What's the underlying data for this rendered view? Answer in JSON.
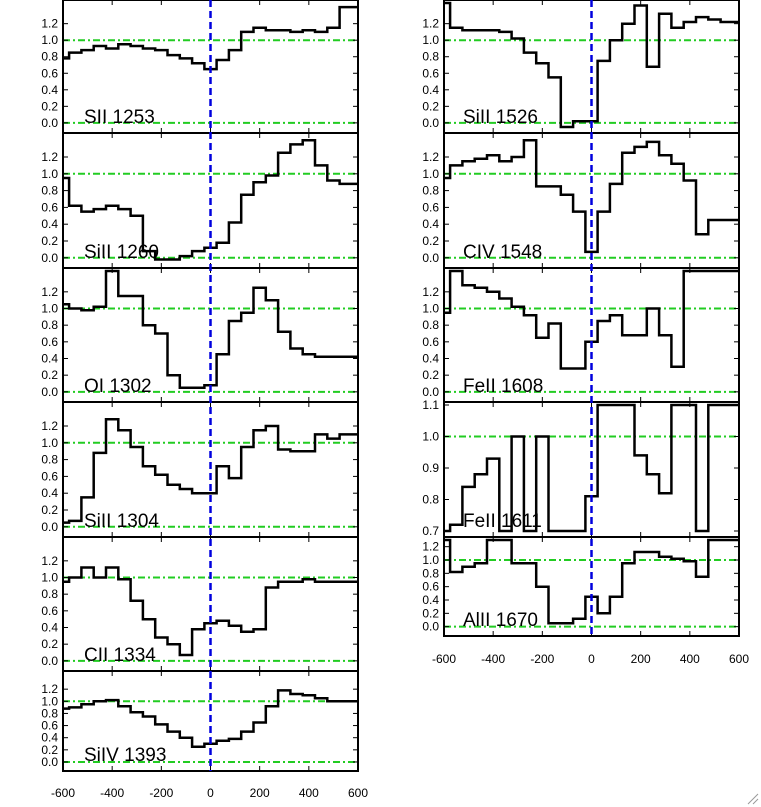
{
  "colors": {
    "spectrum": "#000000",
    "continuum": "#22cc22",
    "velocity_zero": "#0000dd",
    "frame": "#000000"
  },
  "chart_data": {
    "type": "line",
    "style": "histogram",
    "reference_lines": {
      "horizontal": [
        0.0,
        1.0
      ],
      "vertical": [
        0
      ]
    },
    "columns": [
      {
        "xlim": [
          -600,
          600
        ],
        "x_ticks": [
          -600,
          -400,
          -200,
          0,
          200,
          400,
          600
        ],
        "x_tick_labels": [
          "-600",
          "-400",
          "-200",
          "0",
          "200",
          "400",
          "600"
        ],
        "panels": [
          {
            "label": "SII 1253",
            "ylim": [
              -0.05,
              1.45
            ],
            "y_ticks": [
              "0.0",
              "0.2",
              "0.4",
              "0.6",
              "0.8",
              "1.0",
              "1.2"
            ],
            "x": [
              -600,
              -550,
              -500,
              -450,
              -400,
              -350,
              -300,
              -250,
              -200,
              -150,
              -100,
              -50,
              0,
              50,
              100,
              150,
              200,
              250,
              300,
              350,
              400,
              450,
              500,
              550,
              600
            ],
            "y": [
              0.78,
              0.85,
              0.88,
              0.93,
              0.9,
              0.95,
              0.93,
              0.9,
              0.88,
              0.82,
              0.78,
              0.72,
              0.65,
              0.76,
              0.88,
              1.1,
              1.15,
              1.12,
              1.12,
              1.1,
              1.12,
              1.1,
              1.15,
              1.4,
              1.4
            ]
          },
          {
            "label": "SiII 1260",
            "ylim": [
              -0.05,
              1.45
            ],
            "y_ticks": [
              "0.0",
              "0.2",
              "0.4",
              "0.6",
              "0.8",
              "1.0",
              "1.2"
            ],
            "x": [
              -600,
              -550,
              -500,
              -450,
              -400,
              -350,
              -300,
              -250,
              -200,
              -150,
              -100,
              -50,
              0,
              50,
              100,
              150,
              200,
              250,
              300,
              350,
              400,
              450,
              500,
              550,
              600
            ],
            "y": [
              0.95,
              0.62,
              0.55,
              0.58,
              0.62,
              0.58,
              0.5,
              0.08,
              -0.02,
              -0.02,
              0.02,
              0.08,
              0.12,
              0.18,
              0.42,
              0.75,
              0.9,
              0.98,
              1.25,
              1.35,
              1.4,
              1.1,
              0.92,
              0.88,
              0.88
            ]
          },
          {
            "label": "OI 1302",
            "ylim": [
              -0.05,
              1.45
            ],
            "y_ticks": [
              "0.0",
              "0.2",
              "0.4",
              "0.6",
              "0.8",
              "1.0",
              "1.2"
            ],
            "x": [
              -600,
              -550,
              -500,
              -450,
              -400,
              -350,
              -300,
              -250,
              -200,
              -150,
              -100,
              -50,
              0,
              50,
              100,
              150,
              200,
              250,
              300,
              350,
              400,
              450,
              500,
              550,
              600
            ],
            "y": [
              1.05,
              1.0,
              0.98,
              1.02,
              1.45,
              1.15,
              1.15,
              0.8,
              0.7,
              0.2,
              0.05,
              0.05,
              0.08,
              0.45,
              0.85,
              0.95,
              1.25,
              1.1,
              0.72,
              0.52,
              0.45,
              0.42,
              0.42,
              0.42,
              0.42
            ]
          },
          {
            "label": "SiII 1304",
            "ylim": [
              -0.05,
              1.45
            ],
            "y_ticks": [
              "0.0",
              "0.2",
              "0.4",
              "0.6",
              "0.8",
              "1.0",
              "1.2"
            ],
            "x": [
              -600,
              -550,
              -500,
              -450,
              -400,
              -350,
              -300,
              -250,
              -200,
              -150,
              -100,
              -50,
              0,
              50,
              100,
              150,
              200,
              250,
              300,
              350,
              400,
              450,
              500,
              550,
              600
            ],
            "y": [
              0.05,
              0.07,
              0.35,
              0.88,
              1.28,
              1.15,
              0.95,
              0.72,
              0.62,
              0.5,
              0.45,
              0.4,
              0.4,
              0.72,
              0.58,
              0.95,
              1.15,
              1.2,
              0.92,
              0.9,
              0.9,
              1.1,
              1.05,
              1.1,
              1.1
            ]
          },
          {
            "label": "CII 1334",
            "ylim": [
              -0.05,
              1.45
            ],
            "y_ticks": [
              "0.0",
              "0.2",
              "0.4",
              "0.6",
              "0.8",
              "1.0",
              "1.2"
            ],
            "x": [
              -600,
              -550,
              -500,
              -450,
              -400,
              -350,
              -300,
              -250,
              -200,
              -150,
              -100,
              -50,
              0,
              50,
              100,
              150,
              200,
              250,
              300,
              350,
              400,
              450,
              500,
              550,
              600
            ],
            "y": [
              0.95,
              1.0,
              1.12,
              1.0,
              1.12,
              0.98,
              0.72,
              0.5,
              0.28,
              0.2,
              0.07,
              0.38,
              0.45,
              0.48,
              0.42,
              0.35,
              0.38,
              0.88,
              0.95,
              0.95,
              0.98,
              0.95,
              0.95,
              0.95,
              0.95
            ]
          },
          {
            "label": "SiIV 1393",
            "ylim": [
              -0.05,
              1.45
            ],
            "y_ticks": [
              "0.0",
              "0.2",
              "0.4",
              "0.6",
              "0.8",
              "1.0",
              "1.2"
            ],
            "x": [
              -600,
              -550,
              -500,
              -450,
              -400,
              -350,
              -300,
              -250,
              -200,
              -150,
              -100,
              -50,
              0,
              50,
              100,
              150,
              200,
              250,
              300,
              350,
              400,
              450,
              500,
              550,
              600
            ],
            "y": [
              0.88,
              0.9,
              0.95,
              1.0,
              1.02,
              0.92,
              0.82,
              0.75,
              0.62,
              0.5,
              0.4,
              0.25,
              0.3,
              0.35,
              0.38,
              0.5,
              0.65,
              0.92,
              1.18,
              1.12,
              1.1,
              1.05,
              1.0,
              1.0,
              1.0
            ]
          }
        ]
      },
      {
        "xlim": [
          -600,
          600
        ],
        "x_ticks": [
          -600,
          -400,
          -200,
          0,
          200,
          400,
          600
        ],
        "x_tick_labels": [
          "-600",
          "-400",
          "-200",
          "0",
          "200",
          "400",
          "600"
        ],
        "panels": [
          {
            "label": "SiII 1526",
            "ylim": [
              -0.05,
              1.45
            ],
            "y_ticks": [
              "0.0",
              "0.2",
              "0.4",
              "0.6",
              "0.8",
              "1.0",
              "1.2"
            ],
            "x": [
              -600,
              -550,
              -500,
              -450,
              -400,
              -350,
              -300,
              -250,
              -200,
              -150,
              -100,
              -50,
              0,
              50,
              100,
              150,
              200,
              250,
              300,
              350,
              400,
              450,
              500,
              550,
              600
            ],
            "y": [
              1.45,
              1.15,
              1.12,
              1.12,
              1.12,
              1.1,
              1.02,
              0.85,
              0.72,
              0.55,
              -0.05,
              0.02,
              0.02,
              0.75,
              1.0,
              1.2,
              1.42,
              0.68,
              1.32,
              1.15,
              1.22,
              1.28,
              1.25,
              1.22,
              1.22
            ]
          },
          {
            "label": "CIV 1548",
            "ylim": [
              -0.05,
              1.45
            ],
            "y_ticks": [
              "0.0",
              "0.2",
              "0.4",
              "0.6",
              "0.8",
              "1.0",
              "1.2"
            ],
            "x": [
              -600,
              -550,
              -500,
              -450,
              -400,
              -350,
              -300,
              -250,
              -200,
              -150,
              -100,
              -50,
              0,
              50,
              100,
              150,
              200,
              250,
              300,
              350,
              400,
              450,
              500,
              550,
              600
            ],
            "y": [
              0.95,
              1.1,
              1.15,
              1.18,
              1.22,
              1.15,
              1.2,
              1.4,
              0.85,
              0.85,
              0.75,
              0.55,
              0.07,
              0.55,
              0.88,
              1.25,
              1.32,
              1.38,
              1.22,
              1.12,
              0.92,
              0.28,
              0.45,
              0.45,
              0.45
            ]
          },
          {
            "label": "FeII 1608",
            "ylim": [
              -0.05,
              1.45
            ],
            "y_ticks": [
              "0.0",
              "0.2",
              "0.4",
              "0.6",
              "0.8",
              "1.0",
              "1.2"
            ],
            "x": [
              -600,
              -550,
              -500,
              -450,
              -400,
              -350,
              -300,
              -250,
              -200,
              -150,
              -100,
              -50,
              0,
              50,
              100,
              150,
              200,
              250,
              300,
              350,
              400,
              450,
              500,
              550,
              600
            ],
            "y": [
              0.95,
              1.45,
              1.28,
              1.25,
              1.2,
              1.12,
              1.02,
              0.92,
              0.65,
              0.82,
              0.28,
              0.28,
              0.6,
              0.85,
              0.92,
              0.68,
              0.68,
              1.0,
              0.68,
              0.3,
              1.45,
              1.45,
              1.45,
              1.45,
              1.45
            ]
          },
          {
            "label": "FeII 1611",
            "ylim": [
              0.7,
              1.1
            ],
            "y_ticks": [
              "0.7",
              "0.8",
              "0.9",
              "1.0",
              "1.1"
            ],
            "x": [
              -600,
              -550,
              -500,
              -450,
              -400,
              -350,
              -300,
              -250,
              -200,
              -150,
              -100,
              -50,
              0,
              50,
              100,
              150,
              200,
              250,
              300,
              350,
              400,
              450,
              500,
              550,
              600
            ],
            "y": [
              0.7,
              0.72,
              0.84,
              0.88,
              0.93,
              0.7,
              1.0,
              0.7,
              1.0,
              0.7,
              0.7,
              0.7,
              0.81,
              1.1,
              1.1,
              1.1,
              0.94,
              0.88,
              0.82,
              1.1,
              1.1,
              0.7,
              1.1,
              1.1,
              1.1
            ]
          },
          {
            "label": "AlII 1670",
            "ylim": [
              -0.05,
              1.3
            ],
            "y_ticks": [
              "0.0",
              "0.2",
              "0.4",
              "0.6",
              "0.8",
              "1.0",
              "1.2"
            ],
            "x": [
              -600,
              -550,
              -500,
              -450,
              -400,
              -350,
              -300,
              -250,
              -200,
              -150,
              -100,
              -50,
              0,
              50,
              100,
              150,
              200,
              250,
              300,
              350,
              400,
              450,
              500,
              550,
              600
            ],
            "y": [
              1.3,
              0.82,
              0.9,
              0.95,
              1.3,
              1.3,
              0.95,
              0.95,
              0.6,
              0.05,
              0.05,
              0.12,
              0.45,
              0.2,
              0.45,
              0.95,
              1.12,
              1.12,
              1.05,
              1.02,
              0.98,
              0.75,
              1.3,
              1.3,
              1.3
            ]
          }
        ]
      }
    ]
  }
}
